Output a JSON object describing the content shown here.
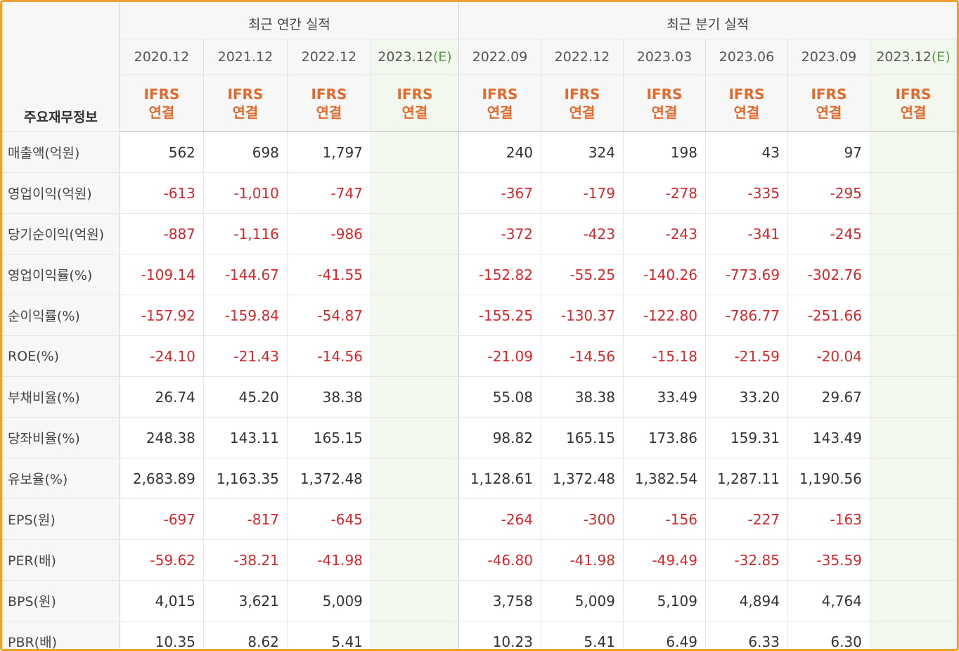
{
  "table": {
    "header": {
      "label_column": "주요재무정보",
      "annual_group": "최근 연간 실적",
      "quarter_group": "최근 분기 실적",
      "estimate_mark": "(E)",
      "annual_periods": [
        "2020.12",
        "2021.12",
        "2022.12",
        "2023.12"
      ],
      "quarter_periods": [
        "2022.09",
        "2022.12",
        "2023.03",
        "2023.06",
        "2023.09",
        "2023.12"
      ],
      "standard_line1": "IFRS",
      "standard_line2": "연결"
    },
    "rows": [
      {
        "label": "매출액(억원)",
        "annual": [
          "562",
          "698",
          "1,797",
          ""
        ],
        "quarter": [
          "240",
          "324",
          "198",
          "43",
          "97",
          ""
        ]
      },
      {
        "label": "영업이익(억원)",
        "annual": [
          "-613",
          "-1,010",
          "-747",
          ""
        ],
        "quarter": [
          "-367",
          "-179",
          "-278",
          "-335",
          "-295",
          ""
        ]
      },
      {
        "label": "당기순이익(억원)",
        "annual": [
          "-887",
          "-1,116",
          "-986",
          ""
        ],
        "quarter": [
          "-372",
          "-423",
          "-243",
          "-341",
          "-245",
          ""
        ]
      },
      {
        "label": "영업이익률(%)",
        "annual": [
          "-109.14",
          "-144.67",
          "-41.55",
          ""
        ],
        "quarter": [
          "-152.82",
          "-55.25",
          "-140.26",
          "-773.69",
          "-302.76",
          ""
        ]
      },
      {
        "label": "순이익률(%)",
        "annual": [
          "-157.92",
          "-159.84",
          "-54.87",
          ""
        ],
        "quarter": [
          "-155.25",
          "-130.37",
          "-122.80",
          "-786.77",
          "-251.66",
          ""
        ]
      },
      {
        "label": "ROE(%)",
        "annual": [
          "-24.10",
          "-21.43",
          "-14.56",
          ""
        ],
        "quarter": [
          "-21.09",
          "-14.56",
          "-15.18",
          "-21.59",
          "-20.04",
          ""
        ]
      },
      {
        "label": "부채비율(%)",
        "annual": [
          "26.74",
          "45.20",
          "38.38",
          ""
        ],
        "quarter": [
          "55.08",
          "38.38",
          "33.49",
          "33.20",
          "29.67",
          ""
        ]
      },
      {
        "label": "당좌비율(%)",
        "annual": [
          "248.38",
          "143.11",
          "165.15",
          ""
        ],
        "quarter": [
          "98.82",
          "165.15",
          "173.86",
          "159.31",
          "143.49",
          ""
        ]
      },
      {
        "label": "유보율(%)",
        "annual": [
          "2,683.89",
          "1,163.35",
          "1,372.48",
          ""
        ],
        "quarter": [
          "1,128.61",
          "1,372.48",
          "1,382.54",
          "1,287.11",
          "1,190.56",
          ""
        ]
      },
      {
        "label": "EPS(원)",
        "annual": [
          "-697",
          "-817",
          "-645",
          ""
        ],
        "quarter": [
          "-264",
          "-300",
          "-156",
          "-227",
          "-163",
          ""
        ]
      },
      {
        "label": "PER(배)",
        "annual": [
          "-59.62",
          "-38.21",
          "-41.98",
          ""
        ],
        "quarter": [
          "-46.80",
          "-41.98",
          "-49.49",
          "-32.85",
          "-35.59",
          ""
        ]
      },
      {
        "label": "BPS(원)",
        "annual": [
          "4,015",
          "3,621",
          "5,009",
          ""
        ],
        "quarter": [
          "3,758",
          "5,009",
          "5,109",
          "4,894",
          "4,764",
          ""
        ]
      },
      {
        "label": "PBR(배)",
        "annual": [
          "10.35",
          "8.62",
          "5.41",
          ""
        ],
        "quarter": [
          "10.23",
          "5.41",
          "6.49",
          "6.33",
          "6.30",
          ""
        ]
      }
    ],
    "group_starts": [
      3,
      6,
      9
    ],
    "colors": {
      "negative": "#d8262b",
      "standard": "#e26a2c",
      "estimate": "#5a9a4a",
      "frame": "#f0a030"
    }
  }
}
